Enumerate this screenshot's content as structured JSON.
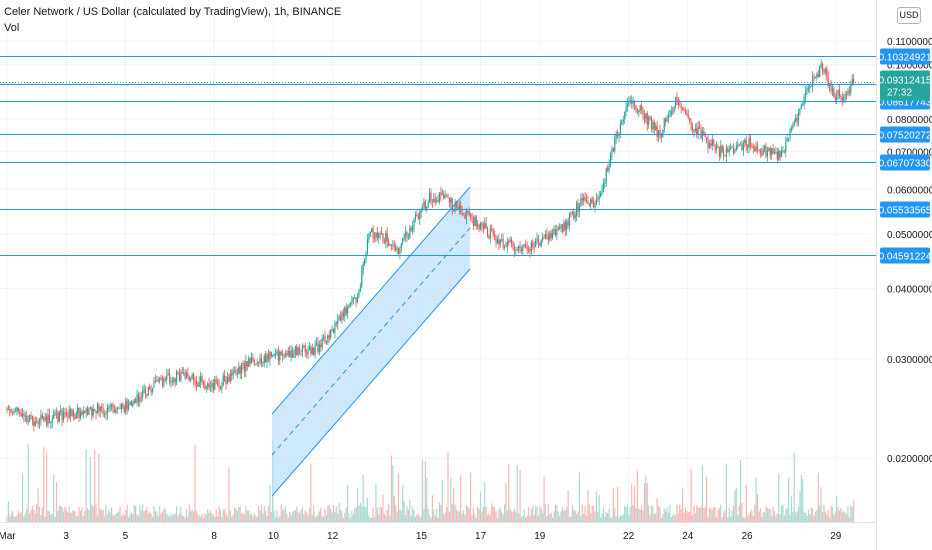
{
  "header": {
    "title": "Celer Network / US Dollar (calculated by TradingView), 1h, BINANCE",
    "volume_label": "Vol",
    "currency_button": "USD"
  },
  "colors": {
    "up": "#26a69a",
    "down": "#ef5350",
    "level_line": "#2196f3",
    "channel_fill": "#bbdefb",
    "current_price_badge": "#26a69a"
  },
  "chart_data": {
    "type": "candlestick",
    "title": "Celer Network / US Dollar (calculated by TradingView), 1h, BINANCE",
    "y_scale": "log",
    "y_range": [
      0.0172,
      0.116
    ],
    "y_ticks": [
      "0.11000000",
      "0.10000000",
      "0.08000000",
      "0.07000000",
      "0.06000000",
      "0.05000000",
      "0.04000000",
      "0.03000000",
      "0.02000000"
    ],
    "x_ticks": [
      "Mar",
      "3",
      "5",
      "8",
      "10",
      "12",
      "15",
      "17",
      "19",
      "22",
      "24",
      "26",
      "29"
    ],
    "horizontal_levels": [
      "0.10324921",
      "0.09227450",
      "0.08617743",
      "0.07520272",
      "0.06707330",
      "0.05533565",
      "0.04591224"
    ],
    "current_price": "0.09312415",
    "countdown": "27:32",
    "price_path": [
      {
        "d": 1.0,
        "p": 0.0245
      },
      {
        "d": 2.0,
        "p": 0.0232
      },
      {
        "d": 3.0,
        "p": 0.0238
      },
      {
        "d": 4.0,
        "p": 0.0243
      },
      {
        "d": 5.0,
        "p": 0.0247
      },
      {
        "d": 5.7,
        "p": 0.0262
      },
      {
        "d": 6.6,
        "p": 0.028
      },
      {
        "d": 7.4,
        "p": 0.0275
      },
      {
        "d": 8.2,
        "p": 0.0268
      },
      {
        "d": 8.7,
        "p": 0.0286
      },
      {
        "d": 9.6,
        "p": 0.03
      },
      {
        "d": 10.5,
        "p": 0.0308
      },
      {
        "d": 11.6,
        "p": 0.0313
      },
      {
        "d": 12.3,
        "p": 0.0352
      },
      {
        "d": 12.9,
        "p": 0.039
      },
      {
        "d": 13.3,
        "p": 0.0505
      },
      {
        "d": 13.8,
        "p": 0.0492
      },
      {
        "d": 14.3,
        "p": 0.047
      },
      {
        "d": 14.8,
        "p": 0.0525
      },
      {
        "d": 15.3,
        "p": 0.0578
      },
      {
        "d": 15.8,
        "p": 0.058
      },
      {
        "d": 16.3,
        "p": 0.0555
      },
      {
        "d": 16.8,
        "p": 0.053
      },
      {
        "d": 17.3,
        "p": 0.0505
      },
      {
        "d": 17.8,
        "p": 0.048
      },
      {
        "d": 18.5,
        "p": 0.047
      },
      {
        "d": 19.3,
        "p": 0.049
      },
      {
        "d": 19.9,
        "p": 0.052
      },
      {
        "d": 20.5,
        "p": 0.0575
      },
      {
        "d": 20.9,
        "p": 0.057
      },
      {
        "d": 21.3,
        "p": 0.064
      },
      {
        "d": 21.7,
        "p": 0.076
      },
      {
        "d": 22.1,
        "p": 0.087
      },
      {
        "d": 22.6,
        "p": 0.081
      },
      {
        "d": 23.1,
        "p": 0.075
      },
      {
        "d": 23.6,
        "p": 0.086
      },
      {
        "d": 24.1,
        "p": 0.078
      },
      {
        "d": 24.6,
        "p": 0.074
      },
      {
        "d": 25.1,
        "p": 0.07
      },
      {
        "d": 25.6,
        "p": 0.07
      },
      {
        "d": 26.1,
        "p": 0.0725
      },
      {
        "d": 26.6,
        "p": 0.07
      },
      {
        "d": 27.2,
        "p": 0.069
      },
      {
        "d": 27.7,
        "p": 0.08
      },
      {
        "d": 28.2,
        "p": 0.092
      },
      {
        "d": 28.6,
        "p": 0.099
      },
      {
        "d": 28.9,
        "p": 0.09
      },
      {
        "d": 29.3,
        "p": 0.086
      },
      {
        "d": 29.6,
        "p": 0.0931
      }
    ]
  }
}
